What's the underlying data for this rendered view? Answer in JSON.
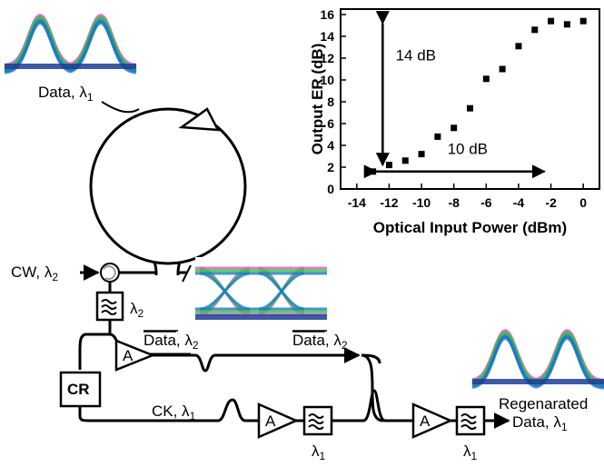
{
  "labels": {
    "data_in": "Data, λ",
    "data_in_sub": "1",
    "cw": "CW, λ",
    "cw_sub": "2",
    "filter1_lambda": "λ",
    "filter1_sub": "2",
    "data_bar_1": "Data",
    "data_bar_1_suffix": ", λ",
    "data_bar_1_sub": "2",
    "data_bar_2": "Data",
    "data_bar_2_suffix": ", λ",
    "data_bar_2_sub": "2",
    "ck": "CK, λ",
    "ck_sub": "1",
    "cr": "CR",
    "amp1": "A",
    "amp2": "A",
    "amp3": "A",
    "filter2_lambda": "λ",
    "filter2_sub": "1",
    "filter3_lambda": "λ",
    "filter3_sub": "1",
    "regen_line1": "Regenarated",
    "regen_line2": "Data, λ",
    "regen_sub": "1",
    "annot_14db": "14 dB",
    "annot_10db": "10 dB"
  },
  "colors": {
    "eye_outer": "#c864c8",
    "eye_mid": "#32c832",
    "eye_inner": "#1e78c8",
    "eye_base": "#1e3c96"
  },
  "chart_data": {
    "type": "scatter",
    "xlabel": "Optical Input Power (dBm)",
    "ylabel": "Output ER (dB)",
    "xlim": [
      -15,
      1
    ],
    "ylim": [
      0,
      16.5
    ],
    "xticks": [
      -14,
      -12,
      -10,
      -8,
      -6,
      -4,
      -2,
      0
    ],
    "yticks": [
      0,
      2,
      4,
      6,
      8,
      10,
      12,
      14,
      16
    ],
    "points": [
      {
        "x": -13,
        "y": 1.6
      },
      {
        "x": -12,
        "y": 2.2
      },
      {
        "x": -11,
        "y": 2.6
      },
      {
        "x": -10,
        "y": 3.2
      },
      {
        "x": -9,
        "y": 4.8
      },
      {
        "x": -8,
        "y": 5.6
      },
      {
        "x": -7,
        "y": 7.4
      },
      {
        "x": -6,
        "y": 10.1
      },
      {
        "x": -5,
        "y": 11.0
      },
      {
        "x": -4,
        "y": 13.1
      },
      {
        "x": -3,
        "y": 14.6
      },
      {
        "x": -2,
        "y": 15.4
      },
      {
        "x": -1,
        "y": 15.1
      },
      {
        "x": 0,
        "y": 15.4
      }
    ],
    "annotations": [
      "14 dB",
      "10 dB"
    ]
  }
}
